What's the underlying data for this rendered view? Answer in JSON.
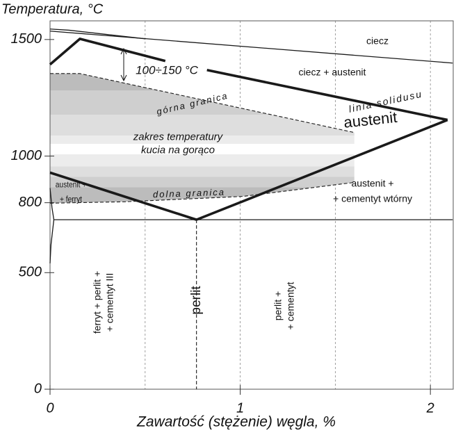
{
  "chart_data": {
    "type": "line",
    "title": "Temperatura, °C",
    "x_label": "Zawartość (stężenie) węgla, %",
    "xlim": [
      0,
      2.12
    ],
    "ylim": [
      0,
      1580
    ],
    "xticks": [
      0,
      1,
      2
    ],
    "yticks": [
      0,
      500,
      800,
      1000,
      1500
    ],
    "xgrid": [
      0.5,
      1,
      1.5,
      2
    ],
    "color": "#1a1a1a",
    "series": [
      {
        "style": "thin",
        "x": [
          0,
          2.117
        ],
        "values": [
          1536,
          1399
        ]
      },
      {
        "style": "thin",
        "x": [
          0,
          0.1,
          0.5
        ],
        "values": [
          1545,
          1540,
          1503
        ]
      },
      {
        "style": "thick",
        "x": [
          0,
          0.157,
          0.606
        ],
        "values": [
          1393,
          1503,
          1408
        ]
      },
      {
        "style": "thick",
        "x": [
          0.825,
          2.09
        ],
        "values": [
          1369,
          1155
        ]
      },
      {
        "style": "thick",
        "x": [
          0,
          0.77
        ],
        "values": [
          929,
          727
        ]
      },
      {
        "style": "thick",
        "x": [
          0.77,
          2.09
        ],
        "values": [
          727,
          1155
        ]
      },
      {
        "style": "thin",
        "x": [
          0.02,
          2.117
        ],
        "values": [
          727,
          727
        ]
      },
      {
        "style": "thin",
        "x": [
          0,
          0.01,
          0.02
        ],
        "values": [
          863,
          780,
          727
        ]
      },
      {
        "style": "thin",
        "x": [
          0.02,
          0.005,
          0
        ],
        "values": [
          727,
          620,
          540
        ]
      },
      {
        "style": "dashed",
        "x": [
          0.77,
          0.77
        ],
        "values": [
          727,
          0
        ]
      },
      {
        "style": "dashed",
        "x": [
          0,
          0.157,
          1.6
        ],
        "values": [
          1354,
          1354,
          1101
        ]
      },
      {
        "style": "dashed",
        "x": [
          0,
          0.394,
          1.015,
          1.6
        ],
        "values": [
          798,
          804,
          827,
          887
        ]
      }
    ],
    "annotations": [
      [
        "ciecz"
      ],
      [
        "ciecz + austenit"
      ],
      [
        "linia solidusu"
      ],
      [
        "austenit"
      ],
      [
        "górna granica"
      ],
      [
        "zakres temperatury",
        "kucia na gorąco"
      ],
      [
        "dolna granica"
      ],
      [
        "austenit +",
        "+ ferryt"
      ],
      [
        "austenit +",
        "+ cementyt wtórny"
      ],
      [
        "100÷150 °C"
      ],
      [
        "ferryt + perlit +",
        "+ cementyt III"
      ],
      [
        "perlit"
      ],
      [
        "perlit +",
        "+ cementyt"
      ]
    ]
  }
}
